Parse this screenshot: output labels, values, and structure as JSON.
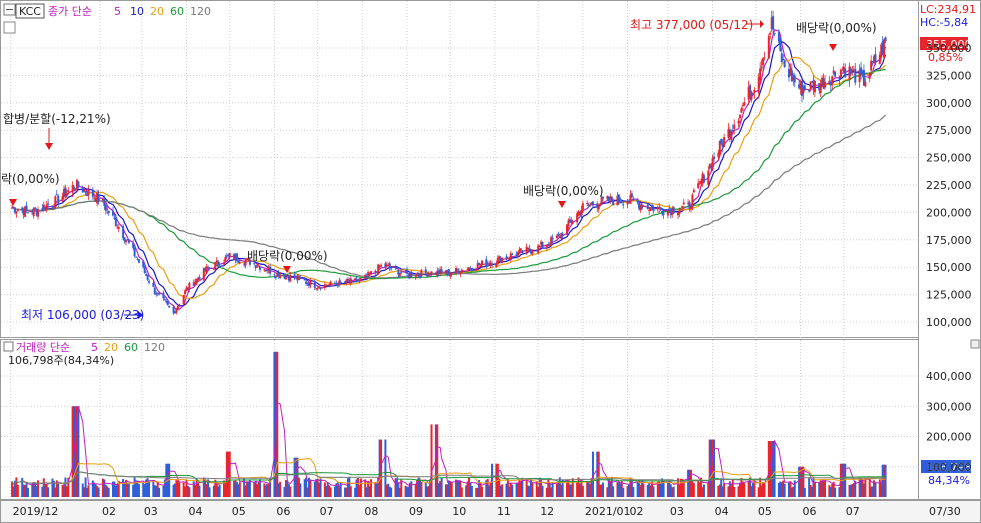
{
  "ticker": "KCC",
  "price_panel": {
    "legend": {
      "prefix": "종가 단순",
      "ma5": "5",
      "ma10": "10",
      "ma20": "20",
      "ma60": "60",
      "ma120": "120"
    },
    "lc_label": "LC:234,91",
    "hc_label": "HC:-5,84",
    "current_price_label": "355,000",
    "current_change_label": "0,85%",
    "annotations": {
      "high": "최고 377,000 (05/12)",
      "low": "최저 106,000 (03/23)",
      "merger": "합병/분할(-12,21%)",
      "dividend_left": "락(0,00%)",
      "dividend_1": "배당락(0,00%)",
      "dividend_2": "배당락(0,00%)",
      "dividend_3": "배당락(0,00%)"
    },
    "y_ticks": [
      "350,000",
      "325,000",
      "300,000",
      "275,000",
      "250,000",
      "225,000",
      "200,000",
      "175,000",
      "150,000",
      "125,000",
      "100,000"
    ]
  },
  "volume_panel": {
    "legend": {
      "prefix": "거래량 단순",
      "ma5": "5",
      "ma20": "20",
      "ma60": "60",
      "ma120": "120"
    },
    "last_volume_label": "106,798주(84,34%)",
    "current_volume_label": "106,798",
    "current_pct_label": "84,34%",
    "y_ticks": [
      "400,000",
      "300,000",
      "200,000",
      "100,000"
    ]
  },
  "x_ticks": [
    "2019/12",
    "02",
    "03",
    "04",
    "05",
    "06",
    "07",
    "08",
    "09",
    "10",
    "11",
    "12",
    "2021/01",
    "02",
    "03",
    "04",
    "05",
    "06",
    "07",
    "07/30"
  ],
  "colors": {
    "up": "#e8242c",
    "down": "#2f5fd8",
    "ma5": "#c020c0",
    "ma10": "#1818c8",
    "ma20": "#e8a010",
    "ma60": "#1a9a3a",
    "ma120": "#7a7a7a",
    "label_red": "#e31818",
    "label_blue": "#1a1ae0"
  },
  "chart_data": [
    {
      "type": "line",
      "title": "KCC",
      "series": [
        {
          "name": "종가",
          "x": [
            "2019-12-01",
            "2019-12-15",
            "2020-01-01",
            "2020-01-15",
            "2020-02-01",
            "2020-02-15",
            "2020-03-01",
            "2020-03-10",
            "2020-03-23",
            "2020-04-01",
            "2020-04-15",
            "2020-05-01",
            "2020-05-15",
            "2020-06-01",
            "2020-06-15",
            "2020-07-01",
            "2020-07-15",
            "2020-08-01",
            "2020-08-15",
            "2020-09-01",
            "2020-09-15",
            "2020-10-01",
            "2020-10-15",
            "2020-11-01",
            "2020-11-15",
            "2020-12-01",
            "2020-12-15",
            "2021-01-01",
            "2021-01-15",
            "2021-02-01",
            "2021-02-15",
            "2021-03-01",
            "2021-03-15",
            "2021-04-01",
            "2021-04-15",
            "2021-05-01",
            "2021-05-12",
            "2021-05-20",
            "2021-06-01",
            "2021-06-15",
            "2021-07-01",
            "2021-07-15",
            "2021-07-30"
          ],
          "values": [
            205000,
            200000,
            210000,
            225000,
            212000,
            185000,
            150000,
            128000,
            108000,
            130000,
            148000,
            160000,
            155000,
            145000,
            140000,
            133000,
            135000,
            138000,
            152000,
            143000,
            145000,
            145000,
            150000,
            156000,
            162000,
            168000,
            177000,
            205000,
            210000,
            212000,
            205000,
            202000,
            205000,
            248000,
            280000,
            320000,
            372000,
            335000,
            312000,
            318000,
            332000,
            320000,
            355000
          ]
        }
      ],
      "ma_periods": [
        5,
        10,
        20,
        60,
        120
      ],
      "xlabel": "",
      "ylabel": "",
      "ylim": [
        90000,
        380000
      ],
      "grid": true,
      "markers": {
        "high": {
          "date": "2021-05-12",
          "value": 377000
        },
        "low": {
          "date": "2020-03-23",
          "value": 106000
        }
      }
    },
    {
      "type": "bar",
      "title": "거래량",
      "series": [
        {
          "name": "거래량",
          "x": [
            "2019-12-01",
            "2020-01-15",
            "2020-02-20",
            "2020-03-20",
            "2020-05-01",
            "2020-06-01",
            "2020-06-15",
            "2020-08-15",
            "2020-09-20",
            "2020-11-01",
            "2021-01-10",
            "2021-03-15",
            "2021-04-01",
            "2021-05-12",
            "2021-06-01",
            "2021-07-01",
            "2021-07-30"
          ],
          "values": [
            35000,
            300000,
            45000,
            110000,
            150000,
            480000,
            130000,
            190000,
            240000,
            110000,
            150000,
            90000,
            190000,
            185000,
            100000,
            110000,
            106798
          ]
        }
      ],
      "ma_periods": [
        5,
        20,
        60,
        120
      ],
      "xlabel": "",
      "ylabel": "",
      "ylim": [
        0,
        500000
      ],
      "grid": true
    }
  ]
}
